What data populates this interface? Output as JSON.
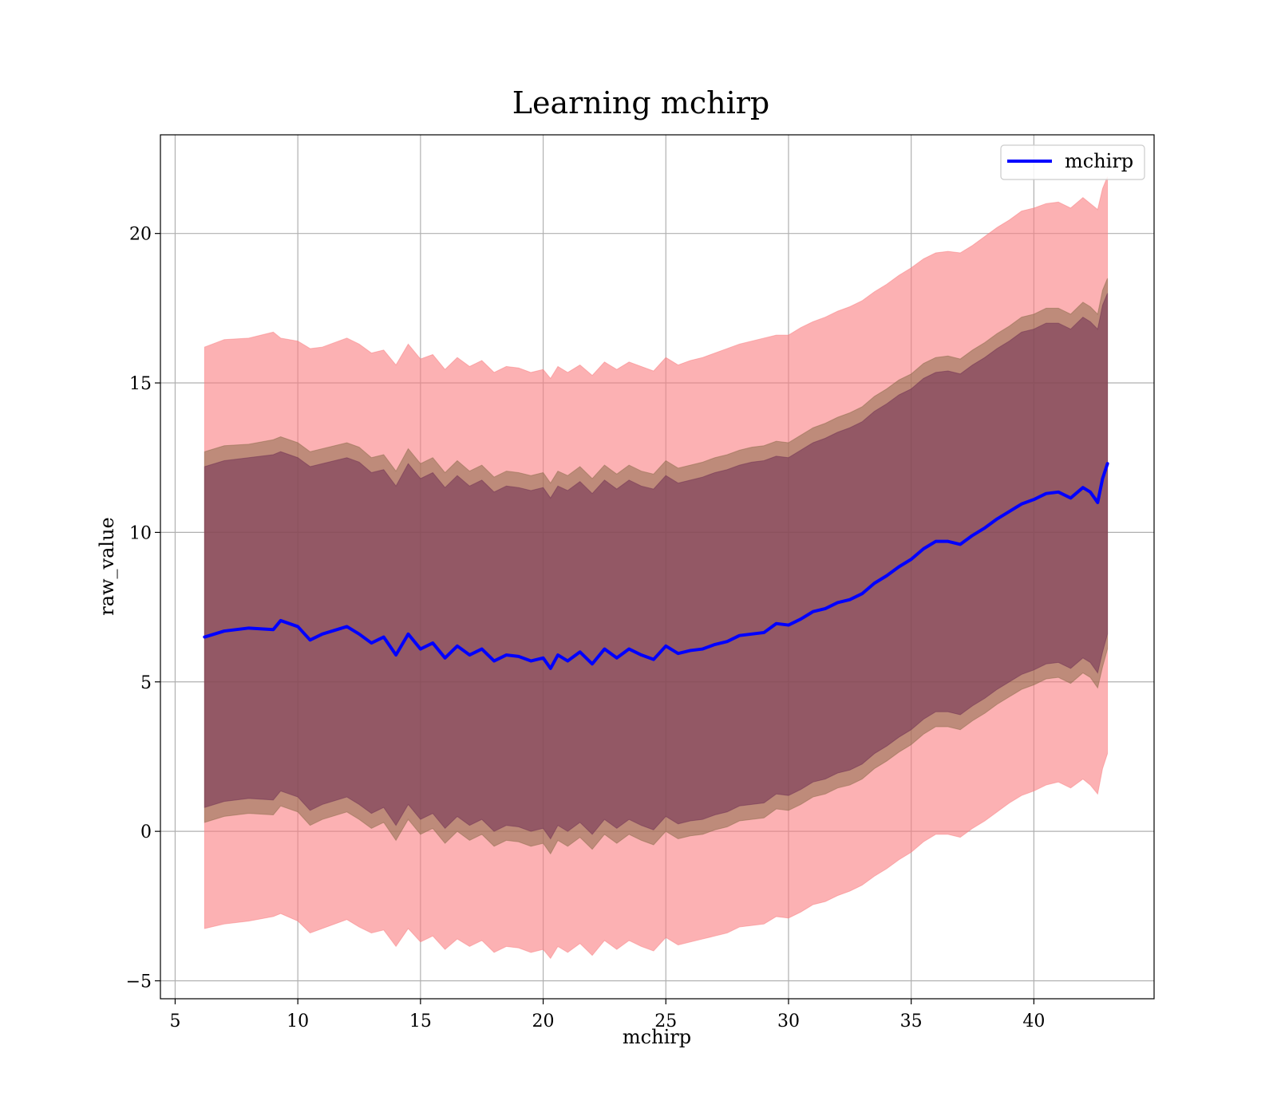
{
  "chart_data": {
    "type": "line",
    "title": "Learning mchirp",
    "xlabel": "mchirp",
    "ylabel": "raw_value",
    "xlim": [
      4.4,
      44.9
    ],
    "ylim": [
      -5.6,
      23.3
    ],
    "xticks": [
      5,
      10,
      15,
      20,
      25,
      30,
      35,
      40
    ],
    "xtick_labels": [
      "5",
      "10",
      "15",
      "20",
      "25",
      "30",
      "35",
      "40"
    ],
    "yticks": [
      -5,
      0,
      5,
      10,
      15,
      20
    ],
    "ytick_labels": [
      "−5",
      "0",
      "5",
      "10",
      "15",
      "20"
    ],
    "grid": true,
    "legend": {
      "position": "top-right",
      "entries": [
        "mchirp"
      ]
    },
    "x": [
      6.2,
      7.0,
      8.0,
      9.0,
      9.3,
      10.0,
      10.5,
      11.0,
      12.0,
      12.5,
      13.0,
      13.5,
      14.0,
      14.5,
      15.0,
      15.5,
      16.0,
      16.5,
      17.0,
      17.5,
      18.0,
      18.5,
      19.0,
      19.5,
      20.0,
      20.3,
      20.6,
      21.0,
      21.5,
      22.0,
      22.5,
      23.0,
      23.5,
      24.0,
      24.5,
      25.0,
      25.5,
      26.0,
      26.5,
      27.0,
      27.5,
      28.0,
      28.5,
      29.0,
      29.5,
      30.0,
      30.5,
      31.0,
      31.5,
      32.0,
      32.5,
      33.0,
      33.5,
      34.0,
      34.5,
      35.0,
      35.5,
      36.0,
      36.5,
      37.0,
      37.5,
      38.0,
      38.5,
      39.0,
      39.5,
      40.0,
      40.5,
      41.0,
      41.5,
      42.0,
      42.3,
      42.6,
      42.8,
      43.0
    ],
    "series": [
      {
        "name": "mchirp",
        "color": "#0000ff",
        "values": [
          6.5,
          6.7,
          6.8,
          6.75,
          7.05,
          6.85,
          6.4,
          6.6,
          6.85,
          6.6,
          6.3,
          6.5,
          5.9,
          6.6,
          6.1,
          6.3,
          5.8,
          6.2,
          5.9,
          6.1,
          5.7,
          5.9,
          5.85,
          5.7,
          5.8,
          5.45,
          5.9,
          5.7,
          6.0,
          5.6,
          6.1,
          5.8,
          6.1,
          5.9,
          5.75,
          6.2,
          5.95,
          6.05,
          6.1,
          6.25,
          6.35,
          6.55,
          6.6,
          6.65,
          6.95,
          6.9,
          7.1,
          7.35,
          7.45,
          7.65,
          7.75,
          7.95,
          8.3,
          8.55,
          8.85,
          9.1,
          9.45,
          9.7,
          9.7,
          9.6,
          9.9,
          10.15,
          10.45,
          10.7,
          10.95,
          11.1,
          11.3,
          11.35,
          11.15,
          11.5,
          11.35,
          11.0,
          11.8,
          12.3
        ]
      }
    ],
    "bands": [
      {
        "name": "outer",
        "color": "#fa7d80",
        "opacity": 0.6,
        "upper": [
          16.2,
          16.45,
          16.5,
          16.7,
          16.5,
          16.4,
          16.15,
          16.2,
          16.5,
          16.3,
          16.0,
          16.1,
          15.6,
          16.3,
          15.8,
          15.95,
          15.45,
          15.85,
          15.55,
          15.75,
          15.35,
          15.55,
          15.5,
          15.35,
          15.45,
          15.15,
          15.55,
          15.35,
          15.6,
          15.25,
          15.7,
          15.45,
          15.7,
          15.55,
          15.4,
          15.85,
          15.6,
          15.75,
          15.85,
          16.0,
          16.15,
          16.3,
          16.4,
          16.5,
          16.6,
          16.6,
          16.85,
          17.05,
          17.2,
          17.4,
          17.55,
          17.75,
          18.05,
          18.3,
          18.6,
          18.85,
          19.15,
          19.35,
          19.4,
          19.35,
          19.6,
          19.9,
          20.2,
          20.45,
          20.75,
          20.85,
          21.0,
          21.05,
          20.85,
          21.2,
          21.0,
          20.8,
          21.5,
          21.9
        ],
        "lower": [
          -3.25,
          -3.1,
          -3.0,
          -2.85,
          -2.75,
          -3.0,
          -3.4,
          -3.25,
          -2.95,
          -3.2,
          -3.4,
          -3.3,
          -3.85,
          -3.25,
          -3.7,
          -3.5,
          -3.95,
          -3.6,
          -3.85,
          -3.65,
          -4.05,
          -3.85,
          -3.9,
          -4.05,
          -3.95,
          -4.25,
          -3.85,
          -4.05,
          -3.75,
          -4.15,
          -3.65,
          -3.95,
          -3.65,
          -3.85,
          -4.0,
          -3.55,
          -3.8,
          -3.7,
          -3.6,
          -3.5,
          -3.4,
          -3.2,
          -3.15,
          -3.1,
          -2.85,
          -2.9,
          -2.7,
          -2.45,
          -2.35,
          -2.15,
          -2.0,
          -1.8,
          -1.5,
          -1.25,
          -0.95,
          -0.7,
          -0.35,
          -0.1,
          -0.1,
          -0.2,
          0.1,
          0.35,
          0.65,
          0.95,
          1.2,
          1.35,
          1.55,
          1.65,
          1.45,
          1.75,
          1.55,
          1.25,
          2.1,
          2.6
        ]
      },
      {
        "name": "middle",
        "color": "#8b6b4a",
        "opacity": 0.55,
        "upper": [
          12.7,
          12.9,
          12.95,
          13.1,
          13.2,
          13.0,
          12.7,
          12.8,
          13.0,
          12.85,
          12.5,
          12.6,
          12.05,
          12.8,
          12.3,
          12.5,
          12.0,
          12.4,
          12.05,
          12.25,
          11.85,
          12.05,
          12.0,
          11.9,
          12.0,
          11.65,
          12.05,
          11.9,
          12.2,
          11.8,
          12.25,
          11.95,
          12.25,
          12.05,
          11.95,
          12.4,
          12.15,
          12.25,
          12.35,
          12.5,
          12.6,
          12.75,
          12.85,
          12.9,
          13.05,
          13.0,
          13.25,
          13.5,
          13.65,
          13.85,
          14.0,
          14.2,
          14.55,
          14.8,
          15.1,
          15.3,
          15.65,
          15.85,
          15.9,
          15.8,
          16.1,
          16.35,
          16.65,
          16.9,
          17.2,
          17.3,
          17.5,
          17.5,
          17.3,
          17.7,
          17.55,
          17.3,
          18.1,
          18.5
        ],
        "lower": [
          0.3,
          0.5,
          0.6,
          0.55,
          0.85,
          0.65,
          0.2,
          0.4,
          0.65,
          0.4,
          0.1,
          0.3,
          -0.3,
          0.4,
          -0.1,
          0.1,
          -0.4,
          0.0,
          -0.3,
          -0.1,
          -0.5,
          -0.3,
          -0.35,
          -0.5,
          -0.4,
          -0.75,
          -0.3,
          -0.5,
          -0.2,
          -0.6,
          -0.1,
          -0.4,
          -0.1,
          -0.3,
          -0.45,
          0.0,
          -0.25,
          -0.15,
          -0.1,
          0.05,
          0.15,
          0.35,
          0.4,
          0.45,
          0.75,
          0.7,
          0.9,
          1.15,
          1.25,
          1.45,
          1.55,
          1.75,
          2.1,
          2.35,
          2.65,
          2.9,
          3.25,
          3.5,
          3.5,
          3.4,
          3.7,
          3.95,
          4.25,
          4.5,
          4.75,
          4.9,
          5.1,
          5.15,
          4.95,
          5.3,
          5.15,
          4.8,
          5.5,
          6.1
        ]
      },
      {
        "name": "inner",
        "color": "#703054",
        "opacity": 0.55,
        "upper": [
          12.2,
          12.4,
          12.5,
          12.6,
          12.7,
          12.5,
          12.2,
          12.3,
          12.5,
          12.35,
          12.0,
          12.1,
          11.55,
          12.3,
          11.8,
          12.0,
          11.5,
          11.9,
          11.55,
          11.75,
          11.35,
          11.55,
          11.5,
          11.4,
          11.5,
          11.15,
          11.55,
          11.4,
          11.7,
          11.3,
          11.75,
          11.45,
          11.75,
          11.55,
          11.45,
          11.9,
          11.65,
          11.75,
          11.85,
          12.0,
          12.1,
          12.25,
          12.35,
          12.4,
          12.55,
          12.5,
          12.75,
          13.0,
          13.15,
          13.35,
          13.5,
          13.7,
          14.05,
          14.3,
          14.6,
          14.8,
          15.15,
          15.35,
          15.4,
          15.3,
          15.6,
          15.85,
          16.15,
          16.4,
          16.7,
          16.8,
          17.0,
          17.0,
          16.8,
          17.2,
          17.05,
          16.8,
          17.6,
          18.0
        ],
        "lower": [
          0.8,
          1.0,
          1.1,
          1.05,
          1.35,
          1.15,
          0.7,
          0.9,
          1.15,
          0.9,
          0.6,
          0.8,
          0.2,
          0.9,
          0.4,
          0.6,
          0.1,
          0.5,
          0.2,
          0.4,
          0.0,
          0.2,
          0.15,
          0.0,
          0.1,
          -0.25,
          0.2,
          0.0,
          0.3,
          -0.1,
          0.4,
          0.1,
          0.4,
          0.2,
          0.05,
          0.5,
          0.25,
          0.35,
          0.4,
          0.55,
          0.65,
          0.85,
          0.9,
          0.95,
          1.25,
          1.2,
          1.4,
          1.65,
          1.75,
          1.95,
          2.05,
          2.25,
          2.6,
          2.85,
          3.15,
          3.4,
          3.75,
          4.0,
          4.0,
          3.9,
          4.2,
          4.45,
          4.75,
          5.0,
          5.25,
          5.4,
          5.6,
          5.65,
          5.45,
          5.8,
          5.65,
          5.3,
          6.0,
          6.6
        ]
      }
    ]
  }
}
